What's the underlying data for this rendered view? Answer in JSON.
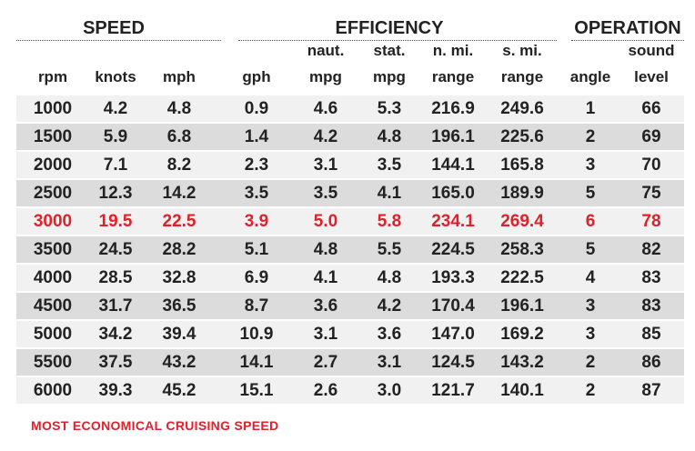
{
  "groups": [
    "SPEED",
    "EFFICIENCY",
    "OPERATION"
  ],
  "columns": [
    [
      "rpm"
    ],
    [
      "knots"
    ],
    [
      "mph"
    ],
    [
      "gph"
    ],
    [
      "naut.",
      "mpg"
    ],
    [
      "stat.",
      "mpg"
    ],
    [
      "n. mi.",
      "range"
    ],
    [
      "s. mi.",
      "range"
    ],
    [
      "angle"
    ],
    [
      "sound",
      "level"
    ]
  ],
  "rows": [
    [
      "1000",
      "4.2",
      "4.8",
      "0.9",
      "4.6",
      "5.3",
      "216.9",
      "249.6",
      "1",
      "66"
    ],
    [
      "1500",
      "5.9",
      "6.8",
      "1.4",
      "4.2",
      "4.8",
      "196.1",
      "225.6",
      "2",
      "69"
    ],
    [
      "2000",
      "7.1",
      "8.2",
      "2.3",
      "3.1",
      "3.5",
      "144.1",
      "165.8",
      "3",
      "70"
    ],
    [
      "2500",
      "12.3",
      "14.2",
      "3.5",
      "3.5",
      "4.1",
      "165.0",
      "189.9",
      "5",
      "75"
    ],
    [
      "3000",
      "19.5",
      "22.5",
      "3.9",
      "5.0",
      "5.8",
      "234.1",
      "269.4",
      "6",
      "78"
    ],
    [
      "3500",
      "24.5",
      "28.2",
      "5.1",
      "4.8",
      "5.5",
      "224.5",
      "258.3",
      "5",
      "82"
    ],
    [
      "4000",
      "28.5",
      "32.8",
      "6.9",
      "4.1",
      "4.8",
      "193.3",
      "222.5",
      "4",
      "83"
    ],
    [
      "4500",
      "31.7",
      "36.5",
      "8.7",
      "3.6",
      "4.2",
      "170.4",
      "196.1",
      "3",
      "83"
    ],
    [
      "5000",
      "34.2",
      "39.4",
      "10.9",
      "3.1",
      "3.6",
      "147.0",
      "169.2",
      "3",
      "85"
    ],
    [
      "5500",
      "37.5",
      "43.2",
      "14.1",
      "2.7",
      "3.1",
      "124.5",
      "143.2",
      "2",
      "86"
    ],
    [
      "6000",
      "39.3",
      "45.2",
      "15.1",
      "2.6",
      "3.0",
      "121.7",
      "140.1",
      "2",
      "87"
    ]
  ],
  "highlight_row": 4,
  "highlight_color": "#e0202a",
  "footnote": "MOST ECONOMICAL CRUISING SPEED"
}
